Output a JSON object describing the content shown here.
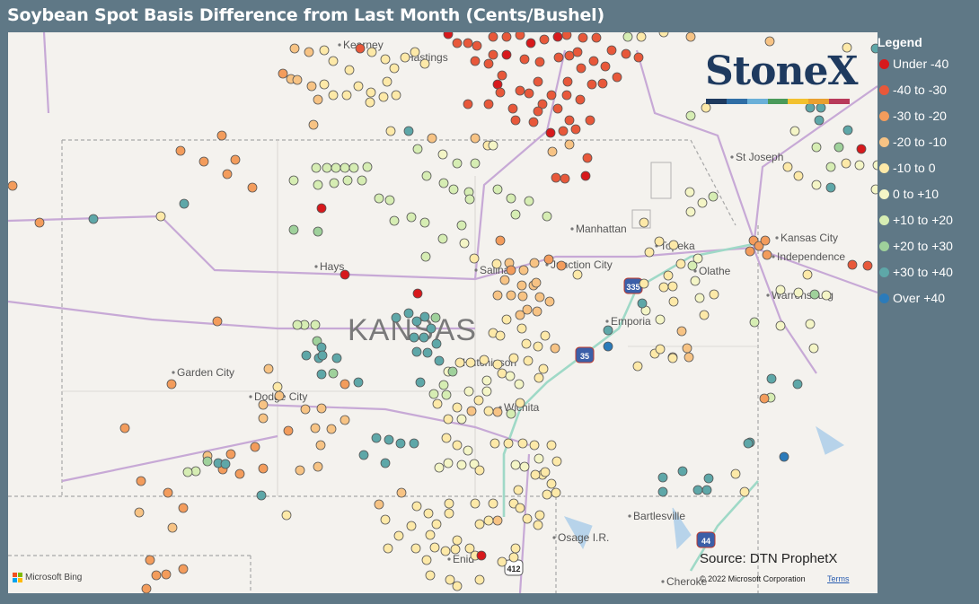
{
  "title": "Soybean Spot Basis Difference from Last Month (Cents/Bushel)",
  "legend": {
    "title": "Legend",
    "items": [
      {
        "label": "Under -40",
        "color": "#d7191c"
      },
      {
        "label": "-40 to -30",
        "color": "#e8583a"
      },
      {
        "label": "-30 to -20",
        "color": "#f39c5c"
      },
      {
        "label": "-20 to -10",
        "color": "#f7c384"
      },
      {
        "label": "-10 to 0",
        "color": "#fde9a8"
      },
      {
        "label": "0 to +10",
        "color": "#f4f5c6"
      },
      {
        "label": "+10 to +20",
        "color": "#d6edb3"
      },
      {
        "label": "+20 to +30",
        "color": "#9fd19b"
      },
      {
        "label": "+30 to +40",
        "color": "#5ea7a8"
      },
      {
        "label": "Over +40",
        "color": "#2b7bba"
      }
    ]
  },
  "brand": {
    "name": "StoneX",
    "bar_colors": [
      "#1e3a5f",
      "#2f6ea5",
      "#6ab0d8",
      "#4a9a5a",
      "#f2c12e",
      "#e8a030",
      "#b83a5a"
    ]
  },
  "map": {
    "state_label": "KANSAS",
    "cities": [
      "Kearney",
      "Hastings",
      "St Joseph",
      "Manhattan",
      "Topeka",
      "Kansas City",
      "Independence",
      "Hays",
      "Salina",
      "Junction City",
      "Olathe",
      "Warrensburg",
      "Emporia",
      "Hutchinson",
      "Garden City",
      "Dodge City",
      "Wichita",
      "Bartlesville",
      "Osage I.R.",
      "Enid",
      "Cheroke"
    ],
    "highway_shields": [
      "335",
      "35",
      "44",
      "412"
    ],
    "source": "Source: DTN ProphetX",
    "copyright": "© 2022 Microsoft Corporation",
    "terms": "Terms",
    "bing": "Microsoft Bing"
  }
}
